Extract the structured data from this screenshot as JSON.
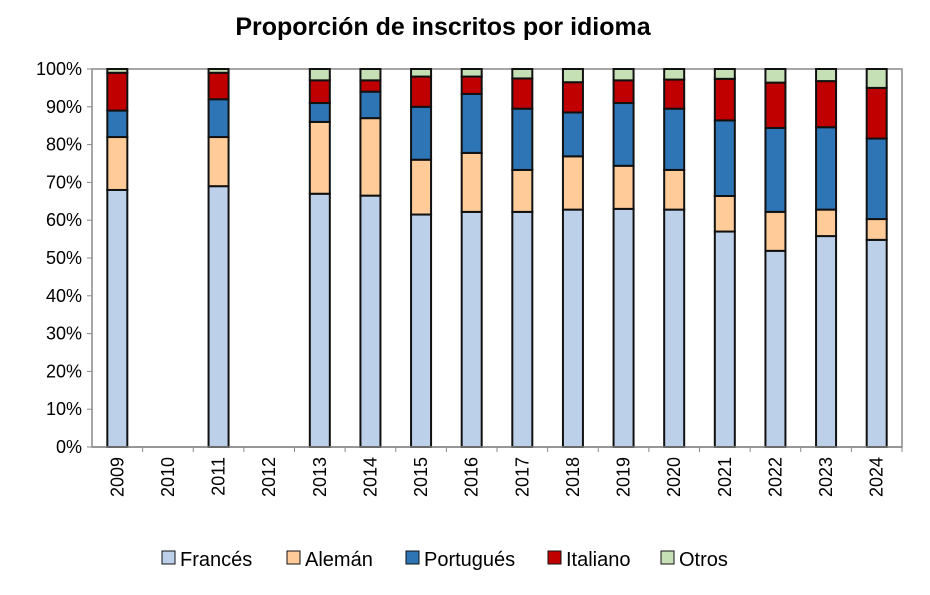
{
  "chart_data": {
    "type": "bar",
    "stacked": true,
    "title": "Proporción de inscritos por idioma",
    "xlabel": "",
    "ylabel": "",
    "ylim": [
      0,
      100
    ],
    "yticks": [
      "0%",
      "10%",
      "20%",
      "30%",
      "40%",
      "50%",
      "60%",
      "70%",
      "80%",
      "90%",
      "100%"
    ],
    "grid": false,
    "legend_position": "bottom",
    "categories": [
      "2009",
      "2010",
      "2011",
      "2012",
      "2013",
      "2014",
      "2015",
      "2016",
      "2017",
      "2018",
      "2019",
      "2020",
      "2021",
      "2022",
      "2023",
      "2024"
    ],
    "series": [
      {
        "name": "Francés",
        "color": "#BDD0EA",
        "values": [
          68,
          null,
          69,
          null,
          67,
          66.5,
          61.5,
          62.2,
          62.2,
          62.8,
          63,
          62.8,
          57,
          51.9,
          55.8,
          54.8
        ]
      },
      {
        "name": "Alemán",
        "color": "#FFCC99",
        "values": [
          14,
          null,
          13,
          null,
          19,
          20.5,
          14.5,
          15.6,
          11.1,
          14.1,
          11.4,
          10.5,
          9.4,
          10.3,
          7,
          5.5
        ]
      },
      {
        "name": "Portugués",
        "color": "#2E75B6",
        "values": [
          7,
          null,
          10,
          null,
          5,
          7,
          14,
          15.6,
          16.2,
          11.6,
          16.6,
          16.2,
          20,
          22.2,
          21.8,
          21.3
        ]
      },
      {
        "name": "Italiano",
        "color": "#C00000",
        "values": [
          10,
          null,
          7,
          null,
          6,
          3,
          8,
          4.6,
          8,
          8,
          6,
          7.7,
          11,
          12,
          12.2,
          13.4
        ]
      },
      {
        "name": "Otros",
        "color": "#C5E0B4",
        "values": [
          1,
          null,
          1,
          null,
          3,
          3,
          2,
          2,
          2.5,
          3.5,
          3,
          2.8,
          2.6,
          3.6,
          3.2,
          5
        ]
      }
    ]
  }
}
